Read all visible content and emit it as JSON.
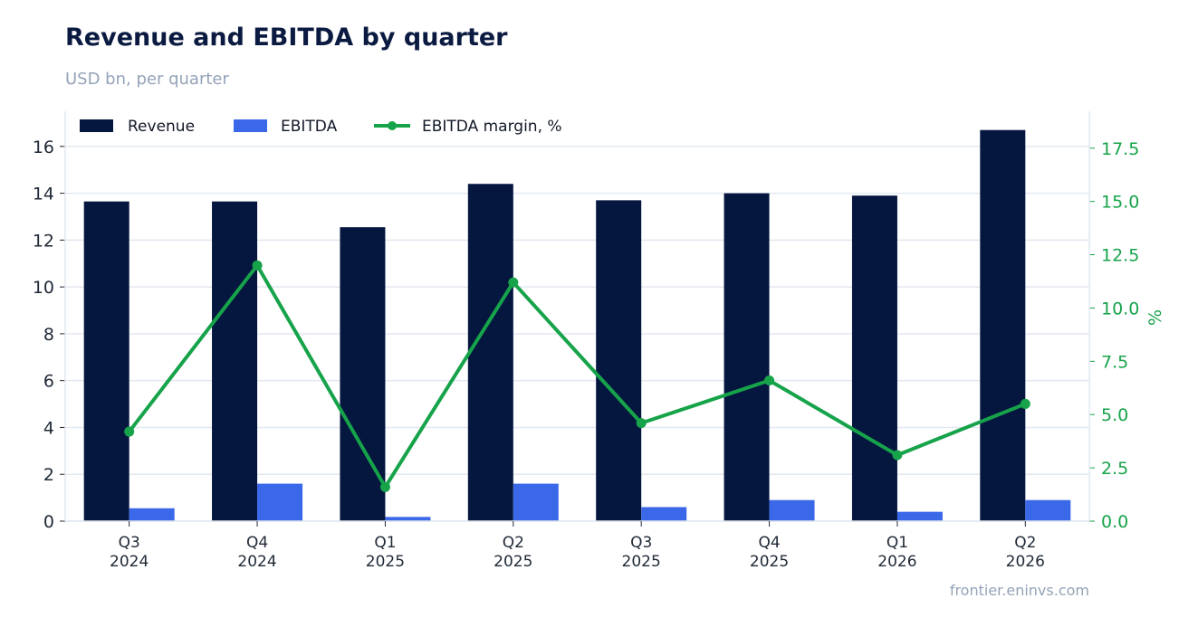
{
  "title": "Revenue and EBITDA by quarter",
  "subtitle": "USD bn, per quarter",
  "source": "frontier.eninvs.com",
  "colors": {
    "revenue": "#05163f",
    "ebitda": "#3b68e8",
    "margin": "#16a34a",
    "grid": "#e2e8f0",
    "title": "#0b1a40",
    "muted": "#94a3b8"
  },
  "chart_data": {
    "type": "bar",
    "categories": [
      [
        "Q3",
        "2024"
      ],
      [
        "Q4",
        "2024"
      ],
      [
        "Q1",
        "2025"
      ],
      [
        "Q2",
        "2025"
      ],
      [
        "Q3",
        "2025"
      ],
      [
        "Q4",
        "2025"
      ],
      [
        "Q1",
        "2026"
      ],
      [
        "Q2",
        "2026"
      ]
    ],
    "series": [
      {
        "name": "Revenue",
        "type": "bar",
        "axis": "left",
        "values": [
          13.65,
          13.65,
          12.55,
          14.4,
          13.7,
          14.0,
          13.9,
          16.7
        ]
      },
      {
        "name": "EBITDA",
        "type": "bar",
        "axis": "left",
        "values": [
          0.55,
          1.6,
          0.18,
          1.6,
          0.6,
          0.9,
          0.4,
          0.9
        ]
      },
      {
        "name": "EBITDA margin, %",
        "type": "line",
        "axis": "right",
        "values": [
          4.2,
          12.0,
          1.6,
          11.2,
          4.6,
          6.6,
          3.1,
          5.5
        ]
      }
    ],
    "y_left": {
      "ylim": [
        0,
        17.5
      ],
      "ticks": [
        "0",
        "2",
        "4",
        "6",
        "8",
        "10",
        "12",
        "14",
        "16"
      ],
      "tick_values": [
        0,
        2,
        4,
        6,
        8,
        10,
        12,
        14,
        16
      ]
    },
    "y_right": {
      "label": "%",
      "ylim": [
        0,
        19.23
      ],
      "ticks": [
        "0.0",
        "2.5",
        "5.0",
        "7.5",
        "10.0",
        "12.5",
        "15.0",
        "17.5"
      ],
      "tick_values": [
        0,
        2.5,
        5,
        7.5,
        10,
        12.5,
        15,
        17.5
      ]
    },
    "grid": true,
    "legend": "top-left"
  }
}
